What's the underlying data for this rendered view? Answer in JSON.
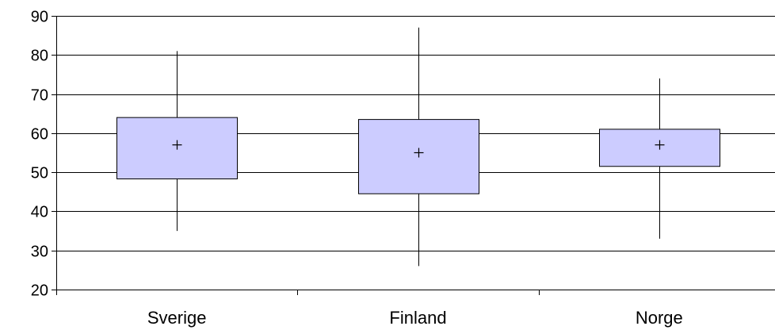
{
  "chart_data": {
    "type": "box",
    "categories": [
      "Sverige",
      "Finland",
      "Norge"
    ],
    "series": [
      {
        "min": [
          35,
          26,
          33
        ],
        "q1": [
          48.3,
          44.5,
          51.5
        ],
        "q3": [
          64,
          63.5,
          61
        ],
        "max": [
          81,
          87,
          74
        ],
        "mean": [
          57,
          55,
          57
        ]
      }
    ],
    "ylim": [
      20,
      90
    ],
    "yticks": [
      20,
      30,
      40,
      50,
      60,
      70,
      80,
      90
    ],
    "grid": true,
    "legend": "none",
    "title": "",
    "xlabel": "",
    "ylabel": "",
    "colors": {
      "box_fill": "#ccccff",
      "box_stroke": "#000000",
      "grid": "#000000"
    }
  }
}
